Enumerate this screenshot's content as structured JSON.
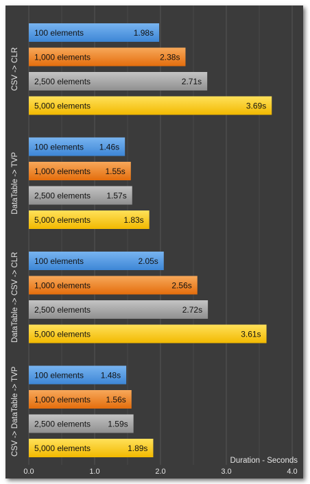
{
  "chart_data": {
    "type": "bar",
    "orientation": "horizontal",
    "xlabel": "Duration - Seconds",
    "xlim": [
      0,
      4.0
    ],
    "xticks": [
      "0.0",
      "1.0",
      "2.0",
      "3.0",
      "4.0"
    ],
    "grid": true,
    "groups": [
      {
        "label": "CSV -> CLR",
        "bars": [
          {
            "name": "100 elements",
            "value": 1.98,
            "value_label": "1.98s"
          },
          {
            "name": "1,000 elements",
            "value": 2.38,
            "value_label": "2.38s"
          },
          {
            "name": "2,500 elements",
            "value": 2.71,
            "value_label": "2.71s"
          },
          {
            "name": "5,000 elements",
            "value": 3.69,
            "value_label": "3.69s"
          }
        ]
      },
      {
        "label": "DataTable -> TVP",
        "bars": [
          {
            "name": "100 elements",
            "value": 1.46,
            "value_label": "1.46s"
          },
          {
            "name": "1,000 elements",
            "value": 1.55,
            "value_label": "1.55s"
          },
          {
            "name": "2,500 elements",
            "value": 1.57,
            "value_label": "1.57s"
          },
          {
            "name": "5,000 elements",
            "value": 1.83,
            "value_label": "1.83s"
          }
        ]
      },
      {
        "label": "DataTable -> CSV -> CLR",
        "bars": [
          {
            "name": "100 elements",
            "value": 2.05,
            "value_label": "2.05s"
          },
          {
            "name": "1,000 elements",
            "value": 2.56,
            "value_label": "2.56s"
          },
          {
            "name": "2,500 elements",
            "value": 2.72,
            "value_label": "2.72s"
          },
          {
            "name": "5,000 elements",
            "value": 3.61,
            "value_label": "3.61s"
          }
        ]
      },
      {
        "label": "CSV -> DataTable -> TVP",
        "bars": [
          {
            "name": "100 elements",
            "value": 1.48,
            "value_label": "1.48s"
          },
          {
            "name": "1,000 elements",
            "value": 1.56,
            "value_label": "1.56s"
          },
          {
            "name": "2,500 elements",
            "value": 1.59,
            "value_label": "1.59s"
          },
          {
            "name": "5,000 elements",
            "value": 1.89,
            "value_label": "1.89s"
          }
        ]
      }
    ],
    "colors": {
      "100 elements": [
        "#78b4f0",
        "#3d86d6"
      ],
      "1,000 elements": [
        "#f7a85a",
        "#e46d0c"
      ],
      "2,500 elements": [
        "#c4c4c4",
        "#8f8f8f"
      ],
      "5,000 elements": [
        "#ffe15a",
        "#f2b900"
      ]
    },
    "background": "#3b3b3b",
    "gridline_color": "#555555"
  }
}
